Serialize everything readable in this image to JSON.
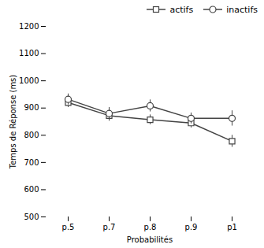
{
  "chart_data": {
    "type": "line",
    "categories": [
      "p.5",
      "p.7",
      "p.8",
      "p.9",
      "p1"
    ],
    "series": [
      {
        "name": "actifs",
        "color": "#444444",
        "marker": "square",
        "values": [
          920,
          872,
          857,
          845,
          778
        ],
        "errors": [
          18,
          20,
          18,
          18,
          22
        ]
      },
      {
        "name": "inactifs",
        "color": "#444444",
        "marker": "circle",
        "values": [
          932,
          880,
          908,
          862,
          862
        ],
        "errors": [
          20,
          22,
          22,
          20,
          28
        ]
      }
    ],
    "xlabel": "Probabilités",
    "ylabel": "Temps de Réponse (ms)",
    "ylim": [
      500,
      1200
    ],
    "yticks": [
      500,
      600,
      700,
      800,
      900,
      1000,
      1100,
      1200
    ],
    "legend": "upper right"
  }
}
